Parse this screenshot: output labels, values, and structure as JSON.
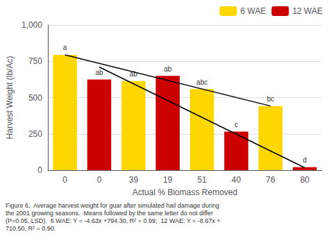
{
  "chart_data": {
    "type": "bar",
    "xlabel": "Actual % Biomass Removed",
    "ylabel": "Harvest Weight (lb/Ac)",
    "caption": "Figure 6.  Average harvest weight for guar after simulated hail damage during\nthe 2001 growing seasons.  Means followed by the same letter do not differ\n(P=0.05, LSD).  6 WAE: Y = -4.63x +794.30, R² = 0.99;  12 WAE: Y = -8.67x +\n710.50, R² = 0.90.",
    "categories": [
      "0",
      "0",
      "39",
      "19",
      "51",
      "40",
      "76",
      "80"
    ],
    "series": [
      {
        "name": "6 WAE",
        "type": "bar",
        "color": "#FFD700",
        "values": [
          794.3,
          null,
          613.43,
          null,
          558.57,
          null,
          441.92,
          null
        ],
        "annotations": [
          "a",
          null,
          "ab",
          null,
          "abc",
          null,
          "bc",
          null
        ]
      },
      {
        "name": "12 WAE",
        "type": "bar",
        "color": "#CC0000",
        "values": [
          null,
          625.0,
          null,
          650.0,
          null,
          265.0,
          null,
          20.0
        ],
        "annotations": [
          null,
          "ab",
          null,
          "ab",
          null,
          "c",
          null,
          "d"
        ]
      },
      {
        "type": "line",
        "color": "#000000",
        "values": [
          794.3,
          null,
          null,
          null,
          null,
          null,
          441.92,
          null
        ]
      },
      {
        "type": "line",
        "color": "#000000",
        "values": [
          null,
          710.5,
          null,
          null,
          null,
          null,
          null,
          16.9
        ]
      }
    ],
    "ylim": [
      0,
      1000
    ],
    "yticks": [
      0,
      250,
      500,
      750,
      1000
    ],
    "grid": true,
    "legend": "upper right"
  }
}
